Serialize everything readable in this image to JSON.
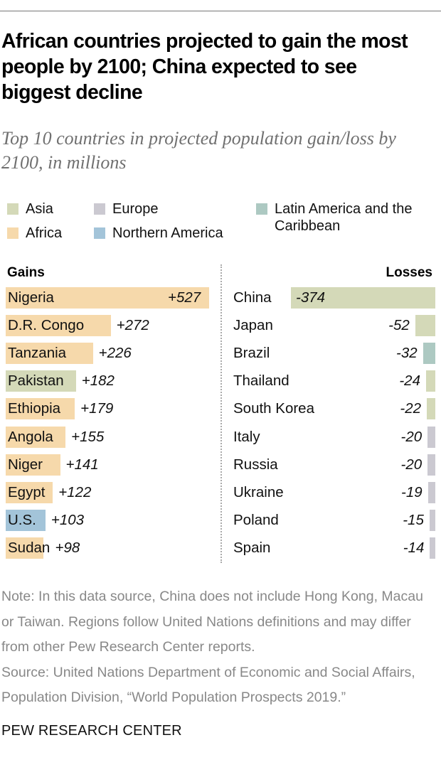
{
  "header": {
    "title": "African countries projected to gain the most people by 2100; China expected to see biggest decline",
    "subtitle": "Top 10 countries in projected population gain/loss by 2100, in millions"
  },
  "legend": {
    "asia": {
      "label": "Asia",
      "color": "#d4d9b8"
    },
    "africa": {
      "label": "Africa",
      "color": "#f6d9ab"
    },
    "europe": {
      "label": "Europe",
      "color": "#cbc9d1"
    },
    "northern_america": {
      "label": "Northern America",
      "color": "#a3c4d9"
    },
    "latin_america": {
      "label": "Latin America and the Caribbean",
      "color": "#adc9c2"
    }
  },
  "columns": {
    "gains": "Gains",
    "losses": "Losses"
  },
  "footer": {
    "note": "Note: In this data source, China does not include Hong Kong, Macau or Taiwan. Regions follow United Nations definitions and may differ from other Pew Research Center reports.",
    "source": "Source: United Nations Department of Economic and Social Affairs, Population Division, “World Population Prospects 2019.”",
    "brand": "PEW RESEARCH CENTER"
  },
  "chart_data": {
    "type": "bar",
    "title": "African countries projected to gain the most people by 2100; China expected to see biggest decline",
    "subtitle": "Top 10 countries in projected population gain/loss by 2100, in millions",
    "xlabel": "",
    "ylabel": "",
    "legend": [
      "Asia",
      "Africa",
      "Europe",
      "Northern America",
      "Latin America and the Caribbean"
    ],
    "legend_position": "top",
    "grid": false,
    "series": [
      {
        "name": "Gains",
        "categories": [
          "Nigeria",
          "D.R. Congo",
          "Tanzania",
          "Pakistan",
          "Ethiopia",
          "Angola",
          "Niger",
          "Egypt",
          "U.S.",
          "Sudan"
        ],
        "values": [
          527,
          272,
          226,
          182,
          179,
          155,
          141,
          122,
          103,
          98
        ],
        "labels": [
          "+527",
          "+272",
          "+226",
          "+182",
          "+179",
          "+155",
          "+141",
          "+122",
          "+103",
          "+98"
        ],
        "regions": [
          "Africa",
          "Africa",
          "Africa",
          "Asia",
          "Africa",
          "Africa",
          "Africa",
          "Africa",
          "Northern America",
          "Africa"
        ]
      },
      {
        "name": "Losses",
        "categories": [
          "China",
          "Japan",
          "Brazil",
          "Thailand",
          "South Korea",
          "Italy",
          "Russia",
          "Ukraine",
          "Poland",
          "Spain"
        ],
        "values": [
          -374,
          -52,
          -32,
          -24,
          -22,
          -20,
          -20,
          -19,
          -15,
          -14
        ],
        "labels": [
          "-374",
          "-52",
          "-32",
          "-24",
          "-22",
          "-20",
          "-20",
          "-19",
          "-15",
          "-14"
        ],
        "regions": [
          "Asia",
          "Asia",
          "Latin America and the Caribbean",
          "Asia",
          "Asia",
          "Europe",
          "Europe",
          "Europe",
          "Europe",
          "Europe"
        ]
      }
    ]
  }
}
